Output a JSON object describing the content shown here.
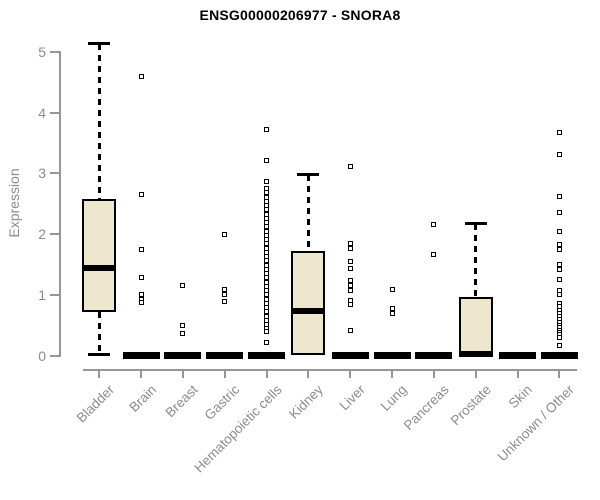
{
  "chart_data": {
    "type": "boxplot",
    "title": "ENSG00000206977 - SNORA8",
    "ylabel": "Expression",
    "xlabel": "",
    "ylim": [
      0,
      5
    ],
    "yticks": [
      0,
      1,
      2,
      3,
      4,
      5
    ],
    "grid": false,
    "legend": "none",
    "categories": [
      "Bladder",
      "Brain",
      "Breast",
      "Gastric",
      "Hematopoietic cells",
      "Kidney",
      "Liver",
      "Lung",
      "Pancreas",
      "Prostate",
      "Skin",
      "Unknown / Other"
    ],
    "boxes": [
      {
        "category": "Bladder",
        "whisker_low": 0.03,
        "q1": 0.71,
        "median": 1.44,
        "q3": 2.58,
        "whisker_high": 5.13,
        "outliers": []
      },
      {
        "category": "Brain",
        "whisker_low": 0,
        "q1": 0,
        "median": 0,
        "q3": 0,
        "whisker_high": 0,
        "outliers": [
          4.6,
          2.65,
          1.74,
          1.29,
          1.0,
          0.93,
          0.87
        ]
      },
      {
        "category": "Breast",
        "whisker_low": 0,
        "q1": 0,
        "median": 0,
        "q3": 0,
        "whisker_high": 0,
        "outliers": [
          1.16,
          0.49,
          0.36
        ]
      },
      {
        "category": "Gastric",
        "whisker_low": 0,
        "q1": 0,
        "median": 0,
        "q3": 0,
        "whisker_high": 0,
        "outliers": [
          1.99,
          1.08,
          1.0,
          0.89
        ]
      },
      {
        "category": "Hematopoietic cells",
        "whisker_low": 0,
        "q1": 0,
        "median": 0,
        "q3": 0,
        "whisker_high": 0,
        "outliers": [
          3.72,
          3.22,
          2.86,
          2.75,
          2.68,
          2.61,
          2.54,
          2.47,
          2.4,
          2.33,
          2.26,
          2.19,
          2.12,
          2.05,
          1.98,
          1.91,
          1.84,
          1.77,
          1.7,
          1.63,
          1.56,
          1.49,
          1.42,
          1.35,
          1.28,
          1.21,
          1.14,
          1.07,
          1.0,
          0.93,
          0.86,
          0.79,
          0.72,
          0.65,
          0.58,
          0.51,
          0.44,
          0.4,
          0.22
        ]
      },
      {
        "category": "Kidney",
        "whisker_low": 0,
        "q1": 0,
        "median": 0.74,
        "q3": 1.72,
        "whisker_high": 2.97,
        "outliers": []
      },
      {
        "category": "Liver",
        "whisker_low": 0,
        "q1": 0,
        "median": 0,
        "q3": 0,
        "whisker_high": 0,
        "outliers": [
          3.11,
          1.85,
          1.76,
          1.55,
          1.43,
          1.24,
          1.15,
          1.07,
          0.91,
          0.84,
          0.42
        ]
      },
      {
        "category": "Lung",
        "whisker_low": 0,
        "q1": 0,
        "median": 0,
        "q3": 0,
        "whisker_high": 0,
        "outliers": [
          1.08,
          0.77,
          0.7
        ]
      },
      {
        "category": "Pancreas",
        "whisker_low": 0,
        "q1": 0,
        "median": 0,
        "q3": 0,
        "whisker_high": 0,
        "outliers": [
          2.15,
          1.66
        ]
      },
      {
        "category": "Prostate",
        "whisker_low": 0,
        "q1": 0,
        "median": 0.02,
        "q3": 0.96,
        "whisker_high": 2.17,
        "outliers": []
      },
      {
        "category": "Skin",
        "whisker_low": 0,
        "q1": 0,
        "median": 0,
        "q3": 0,
        "whisker_high": 0,
        "outliers": []
      },
      {
        "category": "Unknown / Other",
        "whisker_low": 0,
        "q1": 0,
        "median": 0,
        "q3": 0,
        "whisker_high": 0,
        "outliers": [
          3.67,
          3.31,
          2.62,
          2.36,
          2.05,
          1.83,
          1.74,
          1.5,
          1.42,
          1.26,
          1.07,
          1.0,
          0.86,
          0.8,
          0.74,
          0.69,
          0.64,
          0.59,
          0.54,
          0.5,
          0.46,
          0.42,
          0.38,
          0.34,
          0.3,
          0.16
        ]
      }
    ],
    "colors": {
      "box_fill": "#EDE7CD",
      "box_border": "#000000",
      "median": "#000000",
      "outlier": "#000000",
      "axis": "#969696",
      "tick_label": "#8c8c8c",
      "title": "#000000",
      "background": "#ffffff"
    }
  }
}
